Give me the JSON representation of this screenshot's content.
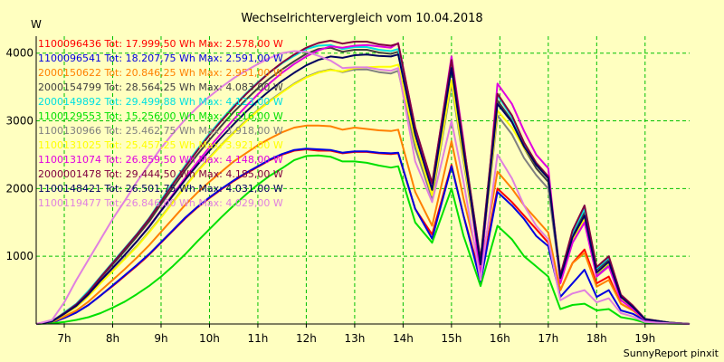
{
  "chart_data": {
    "type": "line",
    "title": "Wechselrichtervergleich vom 10.04.2018",
    "ylabel": "W",
    "footer": "SunnyReport pinxit",
    "xlim": [
      6.42,
      19.92
    ],
    "ylim": [
      0,
      4250
    ],
    "x_ticks": [
      7,
      8,
      9,
      10,
      11,
      12,
      13,
      14,
      15,
      16,
      17,
      18,
      19
    ],
    "x_tick_labels": [
      "7h",
      "8h",
      "9h",
      "10h",
      "11h",
      "12h",
      "13h",
      "14h",
      "15h",
      "16h",
      "17h",
      "18h",
      "19h"
    ],
    "y_ticks": [
      1000,
      2000,
      3000,
      4000
    ],
    "y_tick_labels": [
      "1000",
      "2000",
      "3000",
      "4000"
    ],
    "grid": true,
    "legend_position": "top-left",
    "x": [
      6.42,
      6.75,
      7.0,
      7.25,
      7.5,
      7.75,
      8.0,
      8.25,
      8.5,
      8.75,
      9.0,
      9.25,
      9.5,
      9.75,
      10.0,
      10.25,
      10.5,
      10.75,
      11.0,
      11.25,
      11.5,
      11.75,
      12.0,
      12.25,
      12.5,
      12.75,
      13.0,
      13.25,
      13.5,
      13.75,
      13.9,
      14.25,
      14.6,
      15.0,
      15.25,
      15.6,
      15.95,
      16.25,
      16.5,
      16.75,
      17.0,
      17.25,
      17.5,
      17.75,
      18.0,
      18.25,
      18.5,
      18.75,
      19.0,
      19.5,
      19.92
    ],
    "series": [
      {
        "name": "1100096436 Tot: 17.999,50 Wh Max: 2.578,00 W",
        "color": "#ff0000",
        "values": [
          0,
          20,
          90,
          170,
          280,
          420,
          560,
          710,
          860,
          1020,
          1200,
          1380,
          1560,
          1720,
          1860,
          1990,
          2110,
          2220,
          2320,
          2420,
          2500,
          2560,
          2580,
          2560,
          2560,
          2520,
          2540,
          2540,
          2520,
          2510,
          2520,
          1700,
          1320,
          2350,
          1600,
          700,
          2000,
          1800,
          1600,
          1400,
          1200,
          500,
          900,
          1100,
          600,
          700,
          300,
          200,
          60,
          20,
          0
        ]
      },
      {
        "name": "1100096541 Tot: 18.207,75 Wh Max: 2.591,00 W",
        "color": "#0000e0",
        "values": [
          0,
          20,
          90,
          170,
          280,
          420,
          570,
          720,
          870,
          1030,
          1210,
          1390,
          1570,
          1730,
          1870,
          2000,
          2120,
          2230,
          2330,
          2430,
          2510,
          2570,
          2590,
          2580,
          2570,
          2530,
          2550,
          2550,
          2530,
          2520,
          2530,
          1700,
          1260,
          2330,
          1600,
          620,
          1950,
          1750,
          1550,
          1300,
          1150,
          400,
          600,
          800,
          400,
          500,
          200,
          150,
          50,
          15,
          0
        ]
      },
      {
        "name": "2000150622 Tot: 20.846,25 Wh Max: 2.951,00 W",
        "color": "#ff8000",
        "values": [
          0,
          30,
          110,
          200,
          330,
          490,
          650,
          810,
          980,
          1160,
          1360,
          1560,
          1760,
          1940,
          2100,
          2250,
          2400,
          2520,
          2640,
          2740,
          2830,
          2900,
          2930,
          2930,
          2920,
          2870,
          2900,
          2880,
          2860,
          2850,
          2870,
          1950,
          1450,
          2700,
          1850,
          800,
          2250,
          2000,
          1750,
          1550,
          1350,
          500,
          900,
          1050,
          550,
          650,
          300,
          200,
          60,
          20,
          0
        ]
      },
      {
        "name": "2000154799 Tot: 28.564,25 Wh Max: 4.083,00 W",
        "color": "#404040",
        "values": [
          0,
          40,
          160,
          290,
          470,
          680,
          880,
          1080,
          1290,
          1510,
          1770,
          2020,
          2270,
          2500,
          2720,
          2930,
          3130,
          3310,
          3480,
          3630,
          3760,
          3880,
          3990,
          4060,
          4080,
          4020,
          4050,
          4050,
          4010,
          3990,
          4020,
          2800,
          2000,
          3820,
          2600,
          900,
          3300,
          3000,
          2600,
          2300,
          2100,
          700,
          1300,
          1650,
          800,
          950,
          400,
          250,
          70,
          20,
          0
        ]
      },
      {
        "name": "2000149892 Tot: 29.499,88 Wh Max: 4.123,00 W",
        "color": "#00e0e0",
        "values": [
          0,
          40,
          170,
          300,
          490,
          700,
          910,
          1120,
          1330,
          1560,
          1830,
          2090,
          2340,
          2580,
          2810,
          3020,
          3220,
          3400,
          3570,
          3720,
          3850,
          3960,
          4060,
          4110,
          4120,
          4060,
          4090,
          4090,
          4050,
          4030,
          4060,
          2830,
          2050,
          3880,
          2650,
          950,
          3380,
          3050,
          2650,
          2350,
          2150,
          700,
          1350,
          1700,
          820,
          980,
          420,
          260,
          70,
          20,
          0
        ]
      },
      {
        "name": "1100129553 Tot: 15.256,00 Wh Max: 2.516,00 W",
        "color": "#00e000",
        "values": [
          0,
          10,
          30,
          60,
          100,
          160,
          240,
          330,
          440,
          560,
          700,
          860,
          1030,
          1220,
          1400,
          1580,
          1750,
          1910,
          2060,
          2190,
          2300,
          2420,
          2480,
          2490,
          2470,
          2400,
          2400,
          2380,
          2340,
          2310,
          2330,
          1500,
          1200,
          2000,
          1300,
          560,
          1450,
          1250,
          1000,
          850,
          700,
          220,
          280,
          300,
          200,
          220,
          100,
          70,
          20,
          5,
          0
        ]
      },
      {
        "name": "1100130966 Tot: 25.462,75 Wh Max: 3.918,00 W",
        "color": "#808080",
        "values": [
          0,
          35,
          140,
          260,
          420,
          610,
          790,
          970,
          1150,
          1360,
          1580,
          1810,
          2040,
          2260,
          2460,
          2650,
          2830,
          3000,
          3160,
          3300,
          3430,
          3550,
          3650,
          3720,
          3760,
          3720,
          3760,
          3760,
          3720,
          3700,
          3740,
          2600,
          1850,
          3550,
          2400,
          850,
          3080,
          2800,
          2450,
          2200,
          2000,
          650,
          1200,
          1500,
          720,
          880,
          380,
          240,
          70,
          20,
          0
        ]
      },
      {
        "name": "1100131025 Tot: 25.457,25 Wh Max: 3.921,00 W",
        "color": "#ffff00",
        "values": [
          0,
          35,
          140,
          250,
          410,
          600,
          780,
          960,
          1140,
          1350,
          1570,
          1800,
          2030,
          2250,
          2450,
          2640,
          2820,
          2990,
          3150,
          3290,
          3420,
          3540,
          3640,
          3710,
          3750,
          3730,
          3780,
          3790,
          3800,
          3800,
          3830,
          2700,
          1900,
          3600,
          2450,
          850,
          3150,
          2900,
          2600,
          2350,
          2150,
          700,
          1250,
          1550,
          750,
          900,
          380,
          240,
          70,
          20,
          0
        ]
      },
      {
        "name": "1100131074 Tot: 26.859,50 Wh Max: 4.148,00 W",
        "color": "#e000e0",
        "values": [
          0,
          40,
          150,
          270,
          440,
          640,
          830,
          1020,
          1220,
          1440,
          1680,
          1920,
          2160,
          2390,
          2610,
          2820,
          3020,
          3210,
          3390,
          3560,
          3710,
          3840,
          3950,
          4040,
          4100,
          4080,
          4110,
          4120,
          4100,
          4080,
          4148,
          2900,
          2050,
          3950,
          2700,
          700,
          3550,
          3250,
          2850,
          2500,
          2300,
          600,
          1200,
          1500,
          700,
          850,
          350,
          220,
          60,
          15,
          0
        ]
      },
      {
        "name": "2000001478 Tot: 29.444,50 Wh Max: 4.185,00 W",
        "color": "#800040",
        "values": [
          0,
          40,
          160,
          290,
          470,
          690,
          900,
          1110,
          1320,
          1550,
          1810,
          2070,
          2320,
          2560,
          2790,
          3000,
          3200,
          3390,
          3560,
          3720,
          3860,
          3980,
          4080,
          4150,
          4185,
          4140,
          4170,
          4170,
          4130,
          4110,
          4140,
          2900,
          2080,
          3900,
          2650,
          950,
          3400,
          3080,
          2680,
          2380,
          2180,
          720,
          1380,
          1750,
          840,
          1000,
          430,
          270,
          75,
          20,
          0
        ]
      },
      {
        "name": "1100148421 Tot: 26.501,75 Wh Max: 4.031,00 W",
        "color": "#000060",
        "values": [
          0,
          38,
          150,
          270,
          440,
          640,
          830,
          1020,
          1220,
          1430,
          1670,
          1900,
          2130,
          2350,
          2560,
          2760,
          2950,
          3130,
          3300,
          3450,
          3590,
          3710,
          3820,
          3900,
          3950,
          3930,
          3970,
          3980,
          3960,
          3950,
          3980,
          2800,
          1980,
          3780,
          2550,
          880,
          3250,
          2980,
          2620,
          2350,
          2150,
          680,
          1280,
          1600,
          760,
          920,
          400,
          250,
          70,
          20,
          0
        ]
      },
      {
        "name": "1100119477 Tot: 26.846,00 Wh Max: 4.029,00 W",
        "color": "#e080e0",
        "values": [
          0,
          60,
          320,
          650,
          950,
          1250,
          1550,
          1820,
          2100,
          2350,
          2600,
          2820,
          3020,
          3200,
          3360,
          3500,
          3630,
          3740,
          3840,
          3930,
          4000,
          4030,
          4020,
          3960,
          3890,
          3780,
          3790,
          3790,
          3760,
          3740,
          3780,
          2400,
          1800,
          3000,
          2100,
          650,
          2500,
          2150,
          1750,
          1450,
          1250,
          350,
          450,
          500,
          320,
          380,
          160,
          110,
          30,
          10,
          0
        ]
      }
    ]
  }
}
